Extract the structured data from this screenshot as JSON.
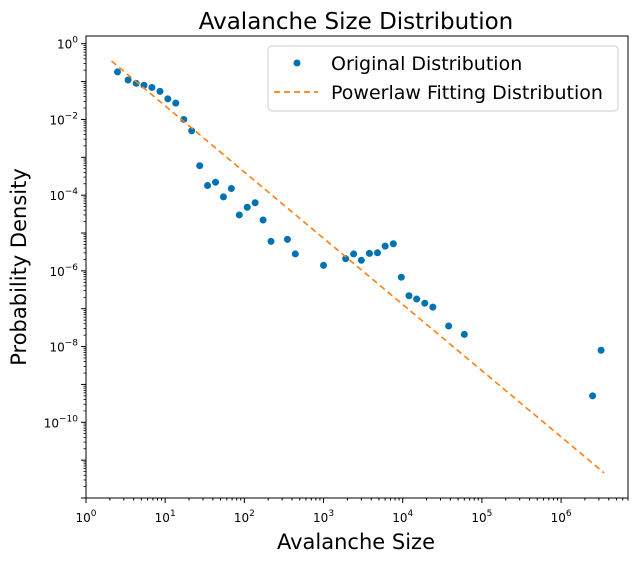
{
  "chart_data": {
    "type": "scatter",
    "title": "Avalanche Size Distribution",
    "xlabel": "Avalanche Size",
    "ylabel": "Probability Density",
    "xscale": "log",
    "yscale": "log",
    "xlim": [
      1,
      7000000
    ],
    "ylim": [
      1e-12,
      1.6
    ],
    "x_ticks": [
      {
        "value": 1,
        "base": "10",
        "exp": "0"
      },
      {
        "value": 10,
        "base": "10",
        "exp": "1"
      },
      {
        "value": 100,
        "base": "10",
        "exp": "2"
      },
      {
        "value": 1000,
        "base": "10",
        "exp": "3"
      },
      {
        "value": 10000,
        "base": "10",
        "exp": "4"
      },
      {
        "value": 100000,
        "base": "10",
        "exp": "5"
      },
      {
        "value": 1000000,
        "base": "10",
        "exp": "6"
      }
    ],
    "y_ticks": [
      {
        "value": 1,
        "base": "10",
        "exp": "0"
      },
      {
        "value": 0.01,
        "base": "10",
        "exp": "−2"
      },
      {
        "value": 0.0001,
        "base": "10",
        "exp": "−4"
      },
      {
        "value": 1e-06,
        "base": "10",
        "exp": "−6"
      },
      {
        "value": 1e-08,
        "base": "10",
        "exp": "−8"
      },
      {
        "value": 1e-10,
        "base": "10",
        "exp": "−10"
      }
    ],
    "legend_position": "top-right",
    "series": [
      {
        "name": "Original Distribution",
        "kind": "points",
        "color": "#0072b2",
        "points": [
          [
            2.5,
            0.18
          ],
          [
            3.4,
            0.11
          ],
          [
            4.3,
            0.09
          ],
          [
            5.4,
            0.08
          ],
          [
            6.8,
            0.07
          ],
          [
            8.6,
            0.055
          ],
          [
            10.8,
            0.035
          ],
          [
            13.6,
            0.027
          ],
          [
            17.2,
            0.01
          ],
          [
            21.6,
            0.005
          ],
          [
            27.3,
            0.0006
          ],
          [
            34.3,
            0.00018
          ],
          [
            43.2,
            0.00022
          ],
          [
            54.4,
            9e-05
          ],
          [
            68.5,
            0.00015
          ],
          [
            86.3,
            3e-05
          ],
          [
            108.7,
            4.8e-05
          ],
          [
            136.8,
            6.3e-05
          ],
          [
            172.3,
            2.2e-05
          ],
          [
            217,
            6e-06
          ],
          [
            350,
            6.8e-06
          ],
          [
            440,
            2.8e-06
          ],
          [
            1000,
            1.4e-06
          ],
          [
            1900,
            2.1e-06
          ],
          [
            2400,
            2.8e-06
          ],
          [
            3000,
            1.9e-06
          ],
          [
            3800,
            2.9e-06
          ],
          [
            4800,
            3e-06
          ],
          [
            6000,
            4.5e-06
          ],
          [
            7600,
            5.2e-06
          ],
          [
            9600,
            6.8e-07
          ],
          [
            12000,
            2.2e-07
          ],
          [
            15000,
            1.8e-07
          ],
          [
            19000,
            1.4e-07
          ],
          [
            24000,
            1.1e-07
          ],
          [
            38000,
            3.5e-08
          ],
          [
            60000,
            2.1e-08
          ],
          [
            2500000,
            5e-10
          ],
          [
            3200000,
            8e-09
          ]
        ]
      },
      {
        "name": "Powerlaw Fitting Distribution",
        "kind": "line",
        "dash": true,
        "color": "#ff7f0e",
        "points": [
          [
            2.1,
            0.35
          ],
          [
            3500000,
            4.6e-12
          ]
        ]
      }
    ]
  }
}
